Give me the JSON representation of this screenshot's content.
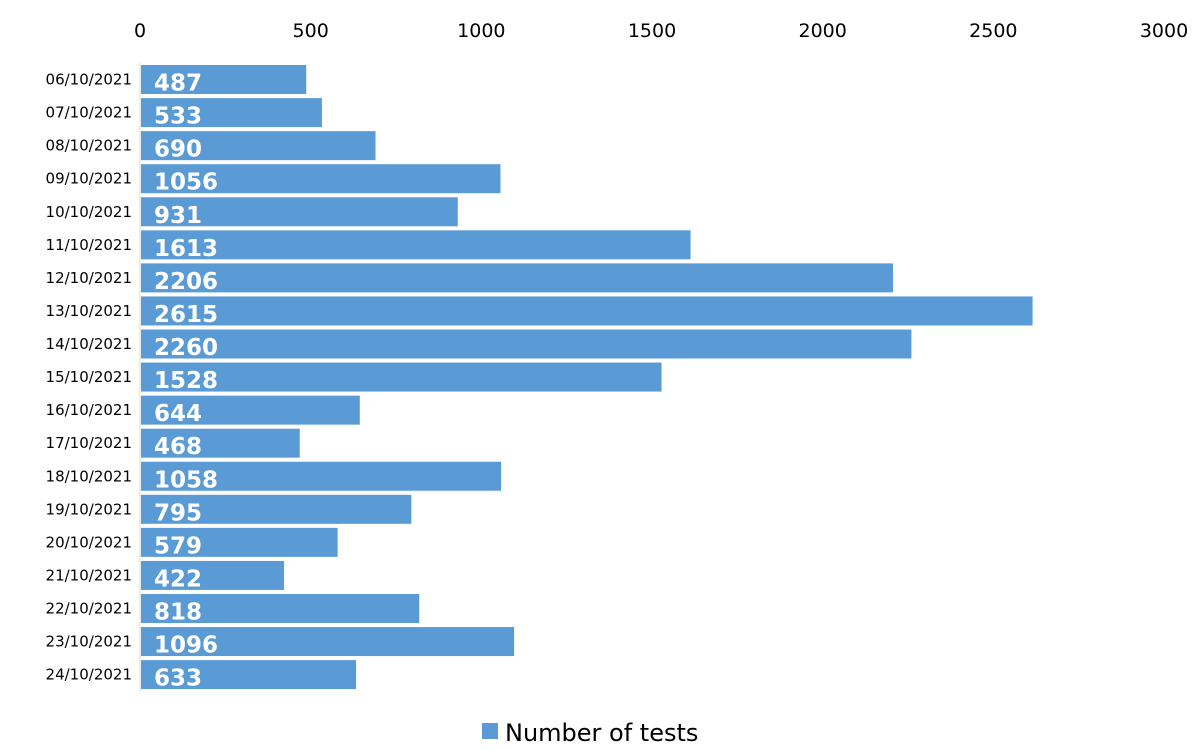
{
  "chart_data": {
    "type": "bar",
    "orientation": "horizontal",
    "categories": [
      "06/10/2021",
      "07/10/2021",
      "08/10/2021",
      "09/10/2021",
      "10/10/2021",
      "11/10/2021",
      "12/10/2021",
      "13/10/2021",
      "14/10/2021",
      "15/10/2021",
      "16/10/2021",
      "17/10/2021",
      "18/10/2021",
      "19/10/2021",
      "20/10/2021",
      "21/10/2021",
      "22/10/2021",
      "23/10/2021",
      "24/10/2021"
    ],
    "series": [
      {
        "name": "Number of tests",
        "values": [
          487,
          533,
          690,
          1056,
          931,
          1613,
          2206,
          2615,
          2260,
          1528,
          644,
          468,
          1058,
          795,
          579,
          422,
          818,
          1096,
          633
        ]
      }
    ],
    "xlim": [
      0,
      3000
    ],
    "x_ticks": [
      0,
      500,
      1000,
      1500,
      2000,
      2500,
      3000
    ],
    "x_axis_position": "top",
    "grid": false,
    "legend_position": "bottom",
    "bar_color": "#5b9bd5",
    "data_label_color": "#ffffff"
  }
}
